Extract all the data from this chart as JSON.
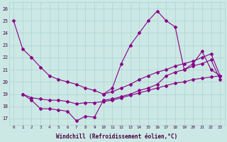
{
  "xlabel": "Windchill (Refroidissement éolien,°C)",
  "bg_color": "#cce8e4",
  "grid_color": "#aad4d0",
  "line_color": "#880088",
  "xlim": [
    -0.5,
    23.5
  ],
  "ylim": [
    16.5,
    26.5
  ],
  "xticks": [
    0,
    1,
    2,
    3,
    4,
    5,
    6,
    7,
    8,
    9,
    10,
    11,
    12,
    13,
    14,
    15,
    16,
    17,
    18,
    19,
    20,
    21,
    22,
    23
  ],
  "yticks": [
    17,
    18,
    19,
    20,
    21,
    22,
    23,
    24,
    25,
    26
  ],
  "series1_x": [
    0,
    1,
    2,
    3,
    4,
    5,
    6,
    7,
    8,
    9,
    10,
    11,
    12,
    13,
    14,
    15,
    16,
    17,
    18,
    19,
    20,
    21,
    22,
    23
  ],
  "series1_y": [
    25.0,
    22.7,
    22.0,
    21.2,
    20.5,
    20.2,
    20.0,
    19.8,
    19.5,
    19.3,
    19.0,
    19.2,
    19.5,
    19.8,
    20.2,
    20.5,
    20.8,
    21.0,
    21.3,
    21.5,
    21.7,
    22.0,
    22.3,
    20.5
  ],
  "series2_x": [
    1,
    2,
    3,
    4,
    5,
    6,
    7,
    8,
    9,
    10,
    11,
    12,
    13,
    14,
    15,
    16,
    17,
    18,
    19,
    20,
    21,
    22,
    23
  ],
  "series2_y": [
    19.0,
    18.5,
    17.8,
    17.8,
    17.7,
    17.6,
    16.8,
    17.2,
    17.1,
    18.5,
    18.6,
    18.8,
    19.0,
    19.3,
    19.5,
    19.8,
    20.5,
    20.8,
    21.0,
    21.3,
    21.5,
    21.8,
    20.2
  ],
  "series3_x": [
    10,
    11,
    12,
    13,
    14,
    15,
    16,
    17,
    18,
    19,
    20,
    21,
    22,
    23
  ],
  "series3_y": [
    19.0,
    19.5,
    21.5,
    23.0,
    24.0,
    25.0,
    25.8,
    25.0,
    24.5,
    21.0,
    21.5,
    22.5,
    21.0,
    20.5
  ],
  "series4_x": [
    1,
    2,
    3,
    4,
    5,
    6,
    7,
    8,
    9,
    10,
    11,
    12,
    13,
    14,
    15,
    16,
    17,
    18,
    19,
    20,
    21,
    22,
    23
  ],
  "series4_y": [
    19.0,
    18.7,
    18.6,
    18.5,
    18.5,
    18.4,
    18.2,
    18.3,
    18.3,
    18.4,
    18.5,
    18.7,
    18.9,
    19.1,
    19.3,
    19.5,
    19.7,
    19.9,
    20.0,
    20.2,
    20.3,
    20.4,
    20.5
  ]
}
